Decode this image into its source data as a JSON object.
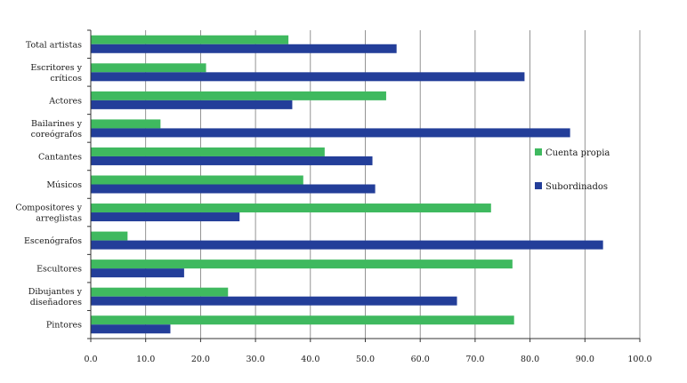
{
  "chart_data": {
    "type": "bar",
    "orientation": "horizontal",
    "categories": [
      [
        "Total artistas"
      ],
      [
        "Escritores y",
        "críticos"
      ],
      [
        "Actores"
      ],
      [
        "Bailarines y",
        "coreógrafos"
      ],
      [
        "Cantantes"
      ],
      [
        "Músicos"
      ],
      [
        "Compositores y",
        "arreglistas"
      ],
      [
        "Escenógrafos"
      ],
      [
        "Escultores"
      ],
      [
        "Dibujantes y",
        "diseñadores"
      ],
      [
        "Pintores"
      ]
    ],
    "series": [
      {
        "name": "Cuenta propia",
        "color": "#3fb95f",
        "values": [
          36.0,
          21.0,
          53.8,
          12.7,
          42.6,
          38.7,
          72.9,
          6.7,
          76.8,
          25.0,
          77.1
        ]
      },
      {
        "name": "Subordinados",
        "color": "#233e99",
        "values": [
          55.7,
          79.0,
          36.7,
          87.3,
          51.3,
          51.8,
          27.1,
          93.3,
          17.0,
          66.7,
          14.5
        ]
      }
    ],
    "xlim": [
      0,
      100
    ],
    "xticks": [
      "0.0",
      "10.0",
      "20.0",
      "30.0",
      "40.0",
      "50.0",
      "60.0",
      "70.0",
      "80.0",
      "90.0",
      "100.0"
    ],
    "grid": "vertical",
    "legend_position": "right"
  }
}
